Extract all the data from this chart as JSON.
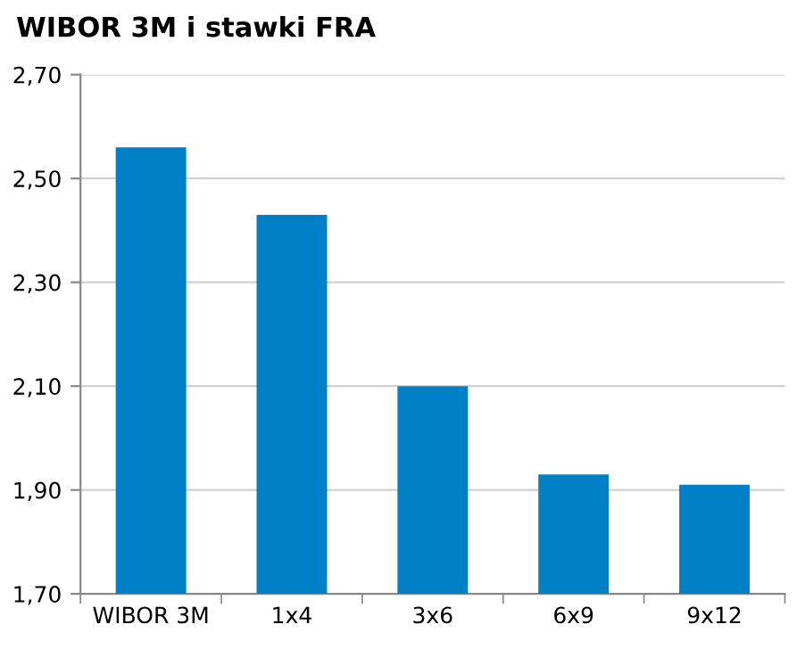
{
  "chart_data": {
    "type": "bar",
    "title": "WIBOR 3M i stawki FRA",
    "categories": [
      "WIBOR 3M",
      "1x4",
      "3x6",
      "6x9",
      "9x12"
    ],
    "values": [
      2.56,
      2.43,
      2.1,
      1.93,
      1.91
    ],
    "color": "#0080c6",
    "ylim": [
      1.7,
      2.7
    ],
    "yticks": [
      {
        "value": 1.7,
        "label": "1,70"
      },
      {
        "value": 1.9,
        "label": "1,90"
      },
      {
        "value": 2.1,
        "label": "2,10"
      },
      {
        "value": 2.3,
        "label": "2,30"
      },
      {
        "value": 2.5,
        "label": "2,50"
      },
      {
        "value": 2.7,
        "label": "2,70"
      }
    ],
    "grid": "y"
  }
}
